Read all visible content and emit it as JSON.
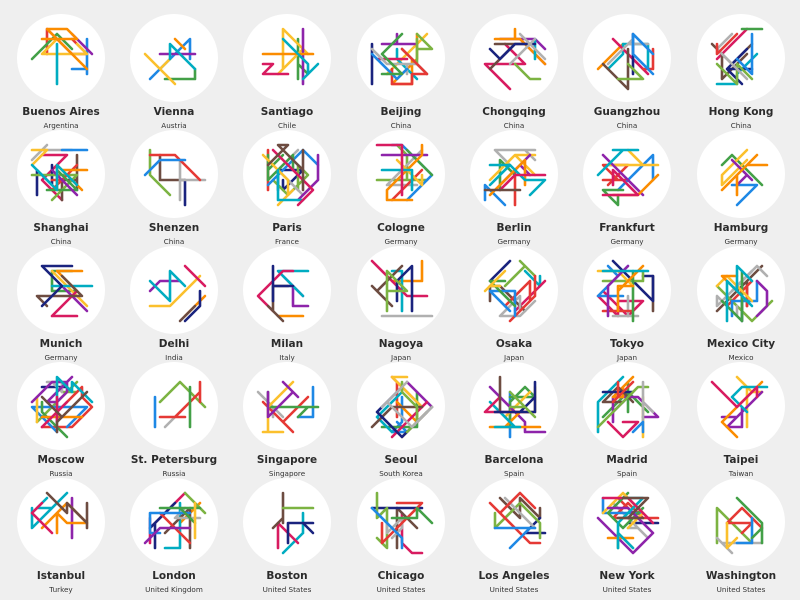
{
  "line_colors": [
    "#e53935",
    "#1e88e5",
    "#43a047",
    "#fbc02d",
    "#8e24aa",
    "#fb8c00",
    "#00acc1",
    "#d81b60",
    "#6d4c41",
    "#1a237e",
    "#7cb342",
    "#b0b0b0"
  ],
  "cities": [
    {
      "name": "Buenos Aires",
      "country": "Argentina",
      "lines": 7
    },
    {
      "name": "Vienna",
      "country": "Austria",
      "lines": 6
    },
    {
      "name": "Santiago",
      "country": "Chile",
      "lines": 6
    },
    {
      "name": "Beijing",
      "country": "China",
      "lines": 12
    },
    {
      "name": "Chongqing",
      "country": "China",
      "lines": 8
    },
    {
      "name": "Guangzhou",
      "country": "China",
      "lines": 9
    },
    {
      "name": "Hong Kong",
      "country": "China",
      "lines": 9
    },
    {
      "name": "Shanghai",
      "country": "China",
      "lines": 12
    },
    {
      "name": "Shenzen",
      "country": "China",
      "lines": 6
    },
    {
      "name": "Paris",
      "country": "France",
      "lines": 12
    },
    {
      "name": "Cologne",
      "country": "Germany",
      "lines": 10
    },
    {
      "name": "Berlin",
      "country": "Germany",
      "lines": 10
    },
    {
      "name": "Frankfurt",
      "country": "Germany",
      "lines": 8
    },
    {
      "name": "Hamburg",
      "country": "Germany",
      "lines": 5
    },
    {
      "name": "Munich",
      "country": "Germany",
      "lines": 8
    },
    {
      "name": "Delhi",
      "country": "India",
      "lines": 7
    },
    {
      "name": "Milan",
      "country": "Italy",
      "lines": 6
    },
    {
      "name": "Nagoya",
      "country": "Japan",
      "lines": 7
    },
    {
      "name": "Osaka",
      "country": "Japan",
      "lines": 10
    },
    {
      "name": "Tokyo",
      "country": "Japan",
      "lines": 12
    },
    {
      "name": "Mexico City",
      "country": "Mexico",
      "lines": 11
    },
    {
      "name": "Moscow",
      "country": "Russia",
      "lines": 12
    },
    {
      "name": "St. Petersburg",
      "country": "Russia",
      "lines": 5
    },
    {
      "name": "Singapore",
      "country": "Singapore",
      "lines": 6
    },
    {
      "name": "Seoul",
      "country": "South Korea",
      "lines": 12
    },
    {
      "name": "Barcelona",
      "country": "Spain",
      "lines": 10
    },
    {
      "name": "Madrid",
      "country": "Spain",
      "lines": 12
    },
    {
      "name": "Taipei",
      "country": "Taiwan",
      "lines": 5
    },
    {
      "name": "Istanbul",
      "country": "Turkey",
      "lines": 5
    },
    {
      "name": "London",
      "country": "United Kingdom",
      "lines": 12
    },
    {
      "name": "Boston",
      "country": "United States",
      "lines": 5
    },
    {
      "name": "Chicago",
      "country": "United States",
      "lines": 8
    },
    {
      "name": "Los Angeles",
      "country": "United States",
      "lines": 6
    },
    {
      "name": "New York",
      "country": "United States",
      "lines": 12
    },
    {
      "name": "Washington",
      "country": "United States",
      "lines": 6
    }
  ]
}
